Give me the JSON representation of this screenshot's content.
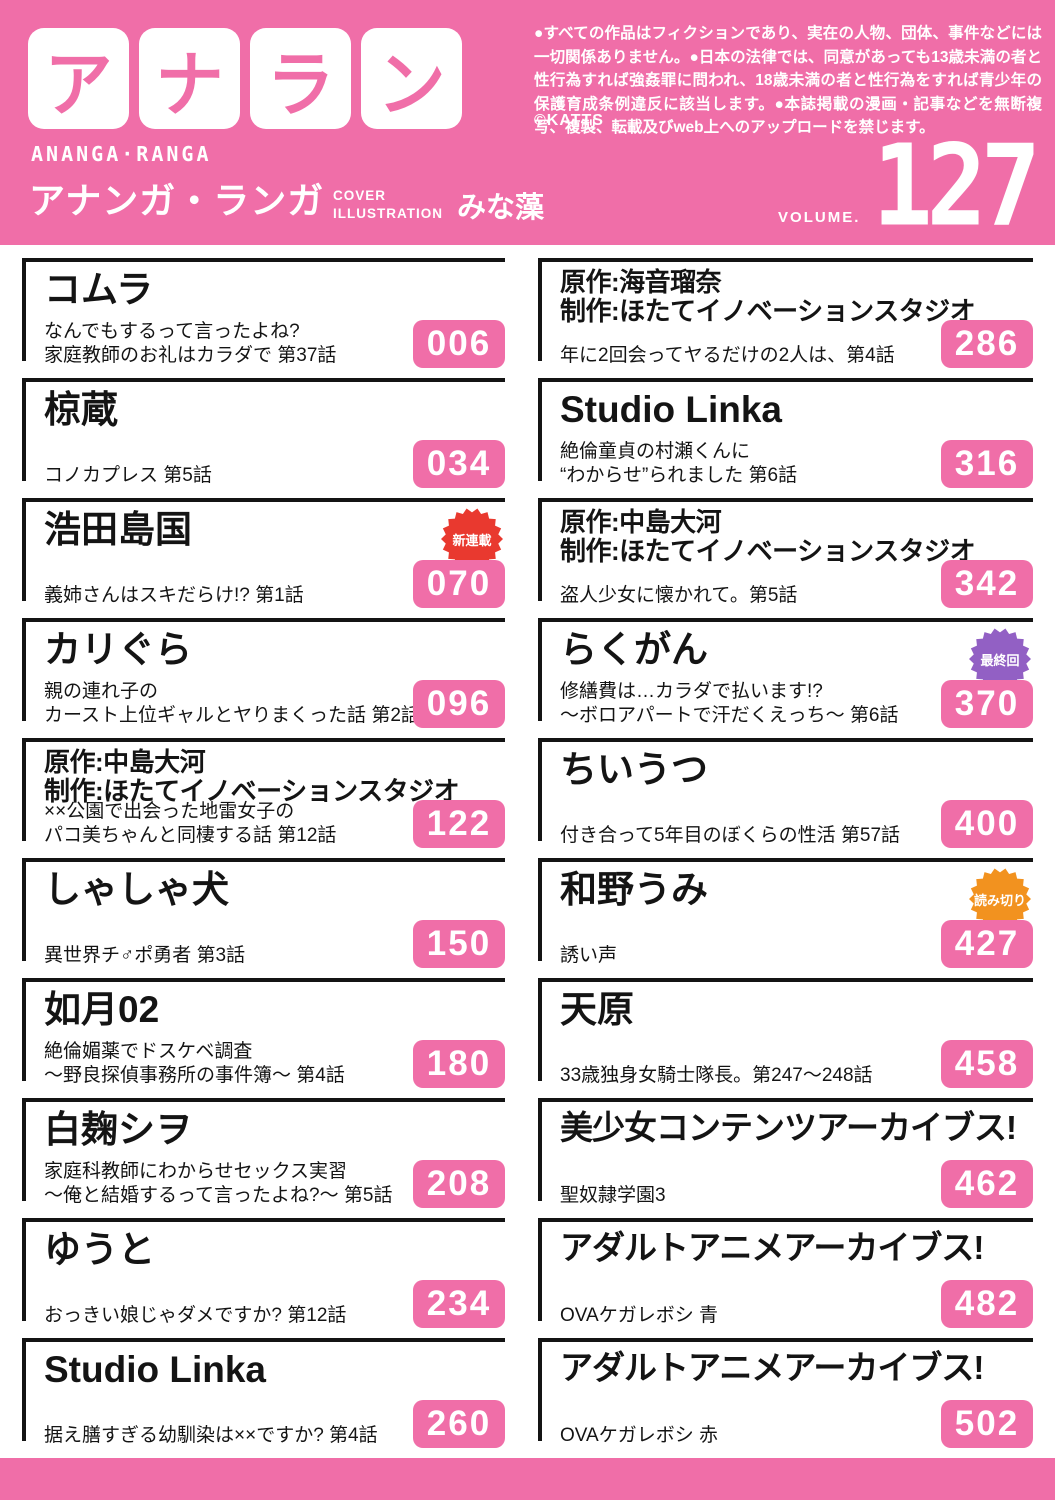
{
  "colors": {
    "pink": "#F06EA8",
    "badge_new": "#E9392F",
    "badge_final": "#9260C4",
    "badge_oneshot": "#F2921F"
  },
  "header": {
    "logo_chars": [
      "ア",
      "ナ",
      "ラ",
      "ン"
    ],
    "logo_latin": "ANANGA·RANGA",
    "logo_kana": "アナンガ・ランガ",
    "cover_label_line1": "COVER",
    "cover_label_line2": "ILLUSTRATION",
    "cover_artist": "みな藻",
    "disclaimer": "●すべての作品はフィクションであり、実在の人物、団体、事件などには一切関係ありません。●日本の法律では、同意があっても13歳未満の者と性行為すれば強姦罪に問われ、18歳未満の者と性行為をすれば青少年の保護育成条例違反に該当します。●本誌掲載の漫画・記事などを無断複写、複製、転載及びweb上へのアップロードを禁じます。",
    "copyright": "©KATTS",
    "volume_label": "VOLUME.",
    "volume_number": "127"
  },
  "toc": {
    "left": [
      {
        "title": [
          "コムラ"
        ],
        "subtitle": [
          "なんでもするって言ったよね?",
          "家庭教師のお礼はカラダで 第37話"
        ],
        "page": "006",
        "badge": null
      },
      {
        "title": [
          "椋蔵"
        ],
        "subtitle": [
          "コノカプレス 第5話"
        ],
        "page": "034",
        "badge": null
      },
      {
        "title": [
          "浩田島国"
        ],
        "subtitle": [
          "義姉さんはスキだらけ!? 第1話"
        ],
        "page": "070",
        "badge": {
          "label": "新連載",
          "type": "new"
        }
      },
      {
        "title": [
          "カリぐら"
        ],
        "subtitle": [
          "親の連れ子の",
          "カースト上位ギャルとヤりまくった話 第2話"
        ],
        "page": "096",
        "badge": null
      },
      {
        "title": [
          "原作:中島大河",
          "制作:ほたてイノベーションスタジオ"
        ],
        "title_style": "credit",
        "subtitle": [
          "××公園で出会った地雷女子の",
          "パコ美ちゃんと同棲する話 第12話"
        ],
        "page": "122",
        "badge": null
      },
      {
        "title": [
          "しゃしゃ犬"
        ],
        "subtitle": [
          "異世界チ♂ポ勇者 第3話"
        ],
        "page": "150",
        "badge": null
      },
      {
        "title": [
          "如月02"
        ],
        "subtitle": [
          "絶倫媚薬でドスケベ調査",
          "〜野良探偵事務所の事件簿〜 第4話"
        ],
        "page": "180",
        "badge": null
      },
      {
        "title": [
          "白麹シヲ"
        ],
        "subtitle": [
          "家庭科教師にわからせセックス実習",
          "〜俺と結婚するって言ったよね?〜 第5話"
        ],
        "page": "208",
        "badge": null
      },
      {
        "title": [
          "ゆうと"
        ],
        "subtitle": [
          "おっきい娘じゃダメですか? 第12話"
        ],
        "page": "234",
        "badge": null
      },
      {
        "title": [
          "Studio Linka"
        ],
        "subtitle": [
          "据え膳すぎる幼馴染は××ですか? 第4話"
        ],
        "page": "260",
        "badge": null
      }
    ],
    "right": [
      {
        "title": [
          "原作:海音瑠奈",
          "制作:ほたてイノベーションスタジオ"
        ],
        "title_style": "credit",
        "subtitle": [
          "年に2回会ってヤるだけの2人は、第4話"
        ],
        "page": "286",
        "badge": null
      },
      {
        "title": [
          "Studio Linka"
        ],
        "subtitle": [
          "絶倫童貞の村瀬くんに",
          "“わからせ”られました 第6話"
        ],
        "page": "316",
        "badge": null
      },
      {
        "title": [
          "原作:中島大河",
          "制作:ほたてイノベーションスタジオ"
        ],
        "title_style": "credit",
        "subtitle": [
          "盗人少女に懐かれて。第5話"
        ],
        "page": "342",
        "badge": null
      },
      {
        "title": [
          "らくがん"
        ],
        "subtitle": [
          "修繕費は…カラダで払います!?",
          "〜ボロアパートで汗だくえっち〜 第6話"
        ],
        "page": "370",
        "badge": {
          "label": "最終回",
          "type": "final"
        }
      },
      {
        "title": [
          "ちいうつ"
        ],
        "subtitle": [
          "付き合って5年目のぼくらの性活 第57話"
        ],
        "page": "400",
        "badge": null
      },
      {
        "title": [
          "和野うみ"
        ],
        "subtitle": [
          "誘い声"
        ],
        "page": "427",
        "badge": {
          "label": "読み切り",
          "type": "oneshot"
        }
      },
      {
        "title": [
          "天原"
        ],
        "subtitle": [
          "33歳独身女騎士隊長。第247〜248話"
        ],
        "page": "458",
        "badge": null
      },
      {
        "title": [
          "美少女コンテンツアーカイブス!"
        ],
        "title_style": "long",
        "subtitle": [
          "聖奴隷学園3"
        ],
        "page": "462",
        "badge": null
      },
      {
        "title": [
          "アダルトアニメアーカイブス!"
        ],
        "title_style": "long",
        "subtitle": [
          "OVAケガレボシ 青"
        ],
        "page": "482",
        "badge": null
      },
      {
        "title": [
          "アダルトアニメアーカイブス!"
        ],
        "title_style": "long",
        "subtitle": [
          "OVAケガレボシ 赤"
        ],
        "page": "502",
        "badge": null
      }
    ]
  }
}
